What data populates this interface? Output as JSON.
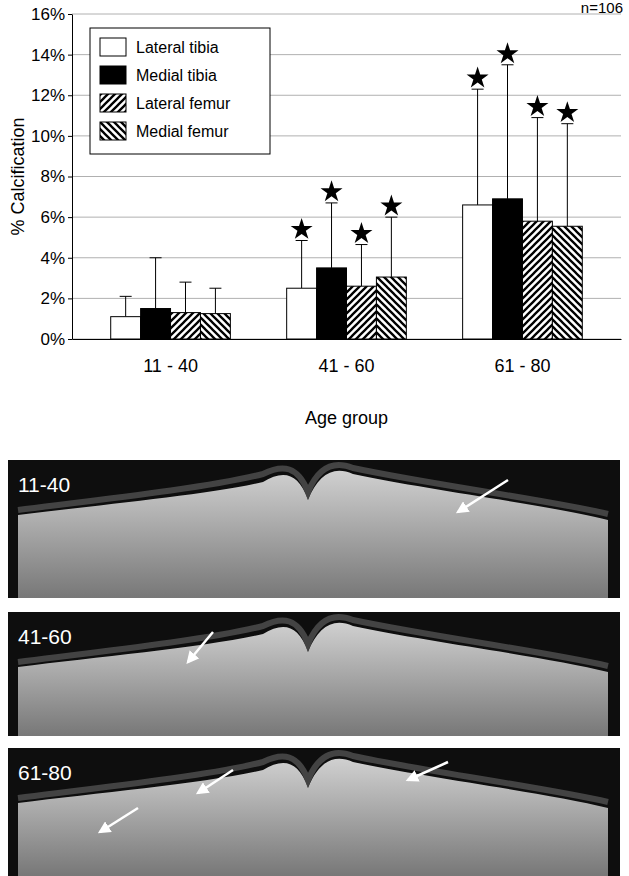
{
  "chart_data": {
    "type": "bar",
    "x_label": "Age group",
    "y_label": "% Calcification",
    "annotation": "n=106",
    "categories": [
      "11 - 40",
      "41 - 60",
      "61 - 80"
    ],
    "series": [
      {
        "name": "Lateral tibia",
        "color": "#ffffff",
        "marker": "solid",
        "values": [
          1.1,
          2.5,
          6.6
        ],
        "errors": [
          1.0,
          2.35,
          5.7
        ],
        "significant": [
          false,
          true,
          true
        ]
      },
      {
        "name": "Medial tibia",
        "color": "#000000",
        "marker": "solid",
        "values": [
          1.5,
          3.5,
          6.9
        ],
        "errors": [
          2.5,
          3.2,
          6.6
        ],
        "significant": [
          false,
          true,
          true
        ]
      },
      {
        "name": "Lateral femur",
        "color": "#000000",
        "marker": "hatch",
        "values": [
          1.3,
          2.6,
          5.8
        ],
        "errors": [
          1.5,
          2.05,
          5.1
        ],
        "significant": [
          false,
          true,
          true
        ]
      },
      {
        "name": "Medial femur",
        "color": "#000000",
        "marker": "backhatch",
        "values": [
          1.25,
          3.05,
          5.55
        ],
        "errors": [
          1.25,
          2.95,
          5.05
        ],
        "significant": [
          false,
          true,
          true
        ]
      }
    ],
    "ylim": [
      0,
      16
    ],
    "yticks": [
      {
        "value": 0,
        "label": "0%"
      },
      {
        "value": 2,
        "label": "2%"
      },
      {
        "value": 4,
        "label": "4%"
      },
      {
        "value": 6,
        "label": "6%"
      },
      {
        "value": 8,
        "label": "8%"
      },
      {
        "value": 10,
        "label": "10%"
      },
      {
        "value": 12,
        "label": "12%"
      },
      {
        "value": 14,
        "label": "14%"
      },
      {
        "value": 16,
        "label": "16%"
      }
    ],
    "grid": true,
    "legend": "upper left"
  },
  "image_labels": [
    "11-40",
    "41-60",
    "61-80"
  ]
}
